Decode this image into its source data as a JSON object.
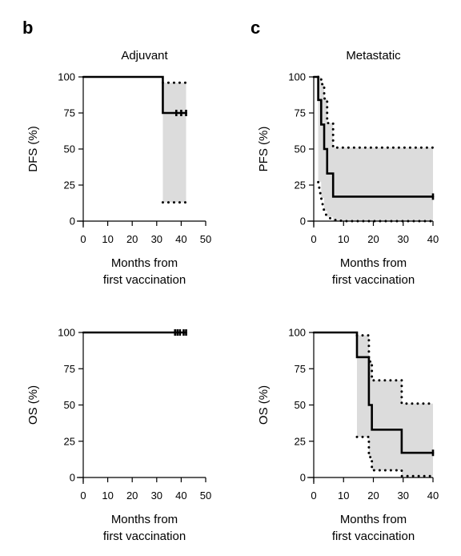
{
  "panel_letters": [
    "b",
    "c"
  ],
  "chart_data": [
    {
      "id": "adjuvant-dfs",
      "type": "line",
      "title": "Adjuvant",
      "xlabel": [
        "Months from",
        "first vaccination"
      ],
      "ylabel": "DFS (%)",
      "xlim": [
        0,
        50
      ],
      "ylim": [
        0,
        100
      ],
      "xticks": [
        0,
        10,
        20,
        30,
        40,
        50
      ],
      "yticks": [
        0,
        25,
        50,
        75,
        100
      ],
      "series": [
        {
          "role": "estimate",
          "x": [
            0,
            32.5,
            32.5,
            42
          ],
          "y": [
            100,
            100,
            75,
            75
          ],
          "censor": [
            {
              "x": 38,
              "y": 75
            },
            {
              "x": 40,
              "y": 75
            },
            {
              "x": 42,
              "y": 75
            }
          ]
        },
        {
          "role": "ci-upper",
          "x": [
            32.5,
            42
          ],
          "y": [
            96,
            96
          ]
        },
        {
          "role": "ci-lower",
          "x": [
            32.5,
            42
          ],
          "y": [
            13,
            13
          ]
        }
      ],
      "ci_band": {
        "x": [
          32.5,
          42
        ],
        "upper": [
          96,
          96
        ],
        "lower": [
          13,
          13
        ]
      }
    },
    {
      "id": "metastatic-pfs",
      "type": "line",
      "title": "Metastatic",
      "xlabel": [
        "Months from",
        "first vaccination"
      ],
      "ylabel": "PFS (%)",
      "xlim": [
        0,
        40
      ],
      "ylim": [
        0,
        100
      ],
      "xticks": [
        0,
        10,
        20,
        30,
        40
      ],
      "yticks": [
        0,
        25,
        50,
        75,
        100
      ],
      "series": [
        {
          "role": "estimate",
          "x": [
            0,
            1.5,
            1.5,
            2.5,
            2.5,
            3.5,
            3.5,
            4.5,
            4.5,
            6.5,
            6.5,
            40
          ],
          "y": [
            100,
            100,
            84,
            84,
            67,
            67,
            50,
            50,
            33,
            33,
            17,
            17
          ],
          "censor": [
            {
              "x": 40,
              "y": 17
            }
          ]
        },
        {
          "role": "ci-upper",
          "x": [
            1.5,
            2.5,
            2.5,
            3.5,
            3.5,
            4.5,
            4.5,
            6.5,
            6.5,
            40
          ],
          "y": [
            100,
            100,
            95,
            95,
            85,
            85,
            68,
            68,
            51,
            51
          ]
        },
        {
          "role": "ci-lower",
          "x": [
            1.5,
            2.5,
            3.5,
            4.5,
            6.5,
            10,
            40
          ],
          "y": [
            27,
            16,
            7,
            3,
            1,
            0,
            0
          ]
        }
      ],
      "ci_band": {
        "x": [
          1.5,
          2.5,
          3.5,
          4.5,
          6.5,
          40
        ],
        "upper": [
          100,
          95,
          85,
          68,
          51,
          51
        ],
        "lower": [
          27,
          16,
          7,
          3,
          0,
          0
        ]
      }
    },
    {
      "id": "adjuvant-os",
      "type": "line",
      "title": "",
      "xlabel": [
        "Months from",
        "first vaccination"
      ],
      "ylabel": "OS (%)",
      "xlim": [
        0,
        50
      ],
      "ylim": [
        0,
        100
      ],
      "xticks": [
        0,
        10,
        20,
        30,
        40,
        50
      ],
      "yticks": [
        0,
        25,
        50,
        75,
        100
      ],
      "series": [
        {
          "role": "estimate",
          "x": [
            0,
            42
          ],
          "y": [
            100,
            100
          ],
          "censor": [
            {
              "x": 37.5,
              "y": 100
            },
            {
              "x": 38.5,
              "y": 100
            },
            {
              "x": 39.5,
              "y": 100
            },
            {
              "x": 41,
              "y": 100
            },
            {
              "x": 42,
              "y": 100
            }
          ]
        }
      ]
    },
    {
      "id": "metastatic-os",
      "type": "line",
      "title": "",
      "xlabel": [
        "Months from",
        "first vaccination"
      ],
      "ylabel": "OS (%)",
      "xlim": [
        0,
        40
      ],
      "ylim": [
        0,
        100
      ],
      "xticks": [
        0,
        10,
        20,
        30,
        40
      ],
      "yticks": [
        0,
        25,
        50,
        75,
        100
      ],
      "series": [
        {
          "role": "estimate",
          "x": [
            0,
            14.5,
            14.5,
            18.5,
            18.5,
            19.5,
            19.5,
            29.5,
            29.5,
            40
          ],
          "y": [
            100,
            100,
            83,
            83,
            50,
            50,
            33,
            33,
            17,
            17
          ],
          "censor": [
            {
              "x": 40,
              "y": 17
            }
          ]
        },
        {
          "role": "ci-upper",
          "x": [
            14.5,
            18.5,
            18.5,
            19.5,
            19.5,
            29.5,
            29.5,
            40
          ],
          "y": [
            98,
            98,
            80,
            80,
            67,
            67,
            51,
            51
          ]
        },
        {
          "role": "ci-lower",
          "x": [
            14.5,
            18.5,
            18.5,
            19.5,
            19.5,
            29.5,
            29.5,
            40
          ],
          "y": [
            28,
            28,
            14,
            14,
            5,
            5,
            1,
            1
          ]
        }
      ],
      "ci_band": {
        "x": [
          14.5,
          18.5,
          19.5,
          29.5,
          40
        ],
        "upper": [
          98,
          80,
          67,
          51,
          51
        ],
        "lower": [
          28,
          14,
          5,
          1,
          1
        ]
      }
    }
  ]
}
